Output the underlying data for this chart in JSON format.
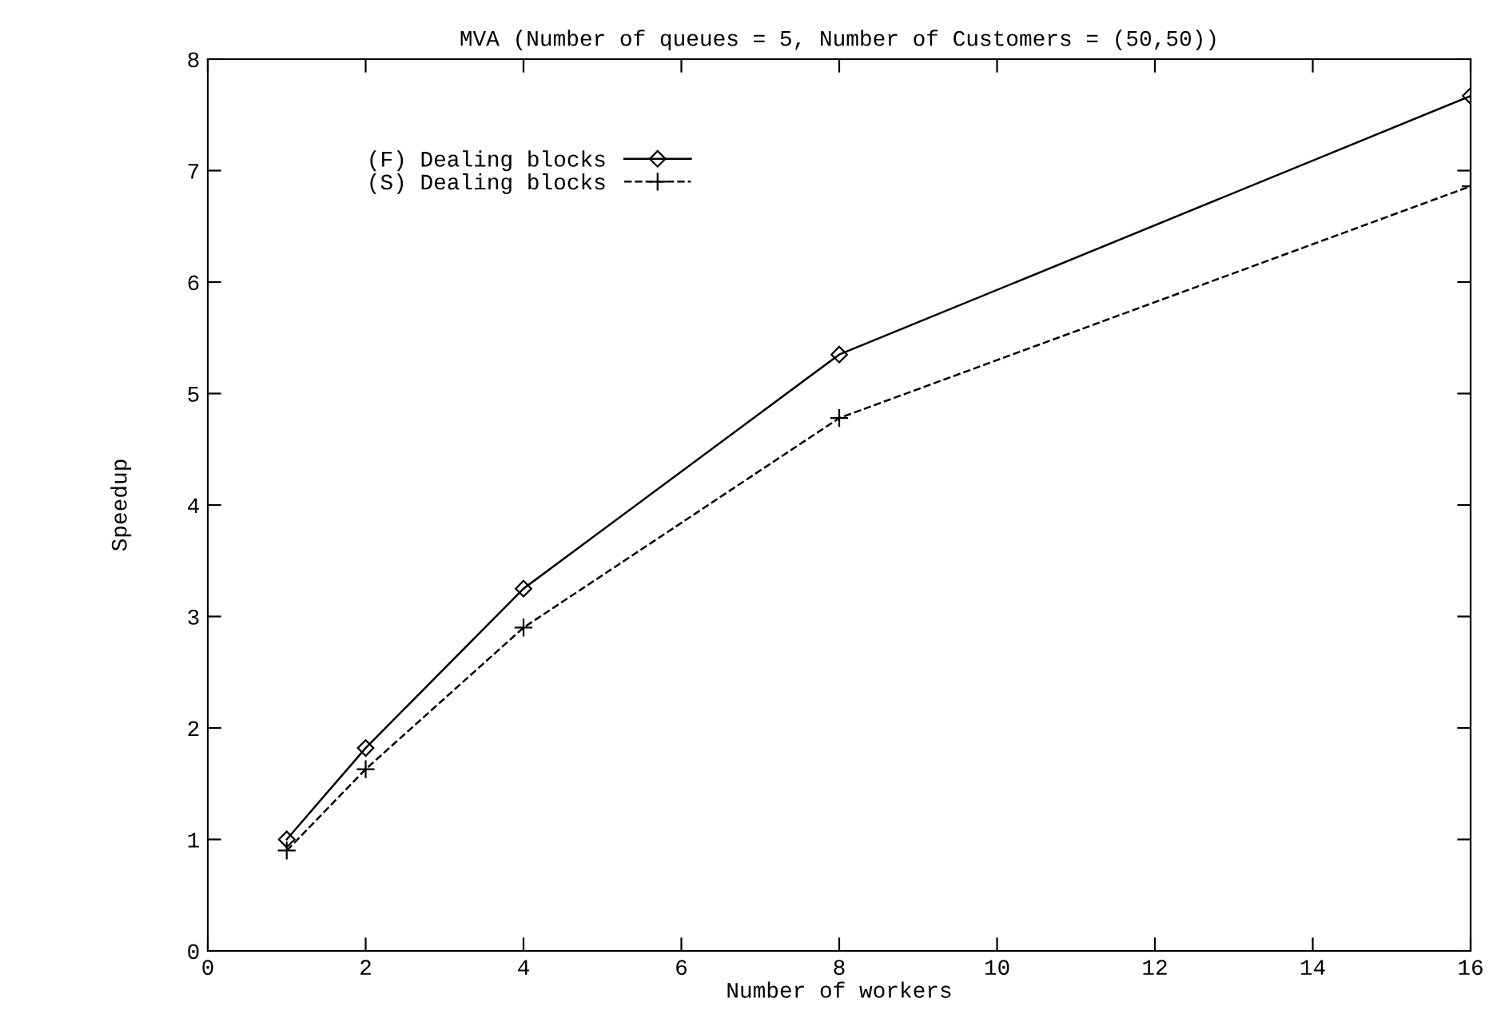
{
  "chart_data": {
    "type": "line",
    "title": "MVA (Number of queues = 5, Number of Customers = (50,50))",
    "xlabel": "Number of workers",
    "ylabel": "Speedup",
    "x": [
      1,
      2,
      4,
      8,
      16
    ],
    "series": [
      {
        "name": "(F) Dealing blocks",
        "color": "#000000",
        "values": [
          1.0,
          1.82,
          3.25,
          5.35,
          7.67
        ],
        "marker": "diamond",
        "line_style": "solid"
      },
      {
        "name": "(S) Dealing blocks",
        "color": "#000000",
        "values": [
          0.9,
          1.63,
          2.9,
          4.78,
          6.86
        ],
        "marker": "cross",
        "line_style": "dashed"
      }
    ],
    "xlim": [
      0,
      16
    ],
    "xticks": [
      0,
      2,
      4,
      6,
      8,
      10,
      12,
      14,
      16
    ],
    "ylim": [
      0,
      8
    ],
    "yticks": [
      0,
      1,
      2,
      3,
      4,
      5,
      6,
      7,
      8
    ],
    "grid": false,
    "legend": "top left"
  }
}
